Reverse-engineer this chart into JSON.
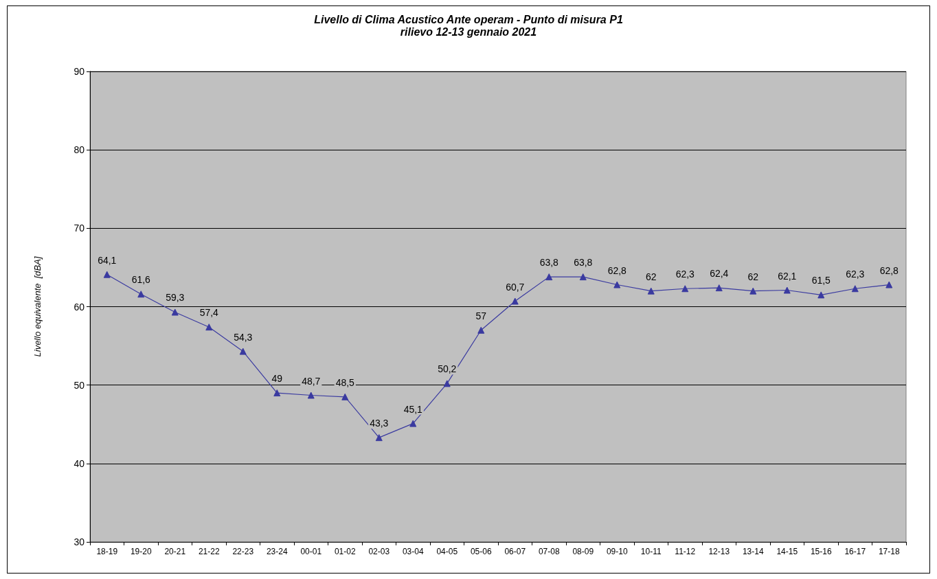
{
  "chart_data": {
    "type": "line",
    "title": "Livello di Clima Acustico Ante operam - Punto di misura P1",
    "subtitle": "rilievo 12-13 gennaio 2021",
    "ylabel": "Livello equivalente  [dBA]",
    "categories": [
      "18-19",
      "19-20",
      "20-21",
      "21-22",
      "22-23",
      "23-24",
      "00-01",
      "01-02",
      "02-03",
      "03-04",
      "04-05",
      "05-06",
      "06-07",
      "07-08",
      "08-09",
      "09-10",
      "10-11",
      "11-12",
      "12-13",
      "13-14",
      "14-15",
      "15-16",
      "16-17",
      "17-18"
    ],
    "series": [
      {
        "color": "#3a3aa0",
        "values": [
          64.1,
          61.6,
          59.3,
          57.4,
          54.3,
          49,
          48.7,
          48.5,
          43.3,
          45.1,
          50.2,
          57,
          60.7,
          63.8,
          63.8,
          62.8,
          62,
          62.3,
          62.4,
          62,
          62.1,
          61.5,
          62.3,
          62.8
        ],
        "value_labels": [
          "64,1",
          "61,6",
          "59,3",
          "57,4",
          "54,3",
          "49",
          "48,7",
          "48,5",
          "43,3",
          "45,1",
          "50,2",
          "57",
          "60,7",
          "63,8",
          "63,8",
          "62,8",
          "62",
          "62,3",
          "62,4",
          "62",
          "62,1",
          "61,5",
          "62,3",
          "62,8"
        ]
      }
    ],
    "ylim": [
      30,
      90
    ],
    "yticks": [
      30,
      40,
      50,
      60,
      70,
      80,
      90
    ],
    "grid": "y",
    "marker": "triangle",
    "line_style": "solid"
  }
}
